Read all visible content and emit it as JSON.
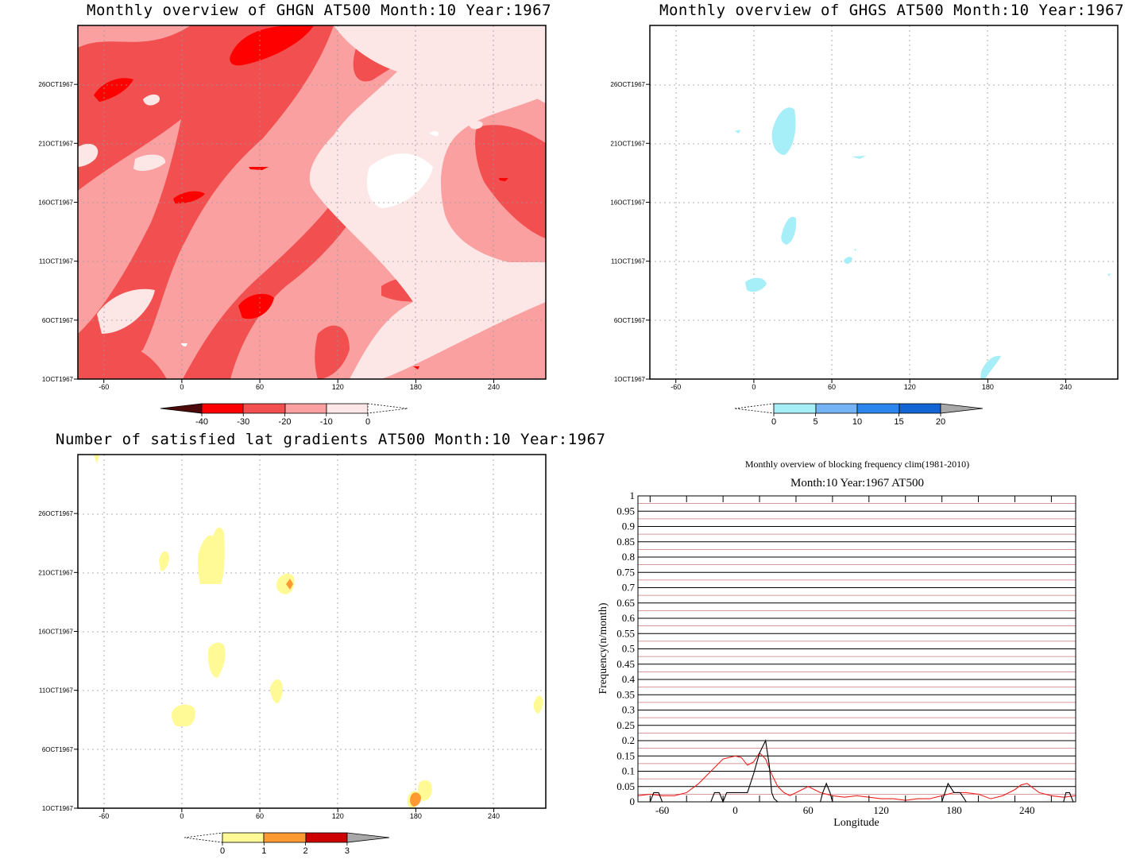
{
  "panels": {
    "ghgn": {
      "title": "Monthly overview of GHGN AT500 Month:10 Year:1967"
    },
    "ghgs": {
      "title": "Monthly overview of GHGS AT500 Month:10 Year:1967"
    },
    "grad": {
      "title": "Number of satisfied lat gradients AT500 Month:10 Year:1967"
    },
    "freq": {
      "title": "Monthly overview of blocking frequency clim(1981-2010)",
      "subtitle": "Month:10 Year:1967  AT500"
    }
  },
  "map_axes": {
    "x_ticks": [
      "-60",
      "0",
      "60",
      "120",
      "180",
      "240"
    ],
    "x_values": [
      -60,
      0,
      60,
      120,
      180,
      240
    ],
    "x_range": [
      -80,
      280
    ],
    "y_ticks": [
      "1OCT1967",
      "6OCT1967",
      "11OCT1967",
      "16OCT1967",
      "21OCT1967",
      "26OCT1967"
    ],
    "y_values": [
      1,
      6,
      11,
      16,
      21,
      26
    ],
    "y_range": [
      1,
      31
    ]
  },
  "colorbars": {
    "ghgn": {
      "labels": [
        "-40",
        "-30",
        "-20",
        "-10",
        "0"
      ],
      "colors": [
        "#4d0a0a",
        "#ff0000",
        "#f25050",
        "#faa0a0",
        "#fde6e6",
        "#ffffff"
      ]
    },
    "ghgs": {
      "labels": [
        "0",
        "5",
        "10",
        "15",
        "20"
      ],
      "colors": [
        "#ffffff",
        "#a6eef8",
        "#74b3f4",
        "#2b85ec",
        "#1166d4",
        "#a8a8a8"
      ]
    },
    "grad": {
      "labels": [
        "0",
        "1",
        "2",
        "3"
      ],
      "colors": [
        "#ffffff",
        "#fffa96",
        "#ff9a32",
        "#cc0000",
        "#a8a8a8"
      ]
    }
  },
  "chart_data": [
    {
      "type": "heatmap",
      "title": "Monthly overview of GHGN AT500 Month:10 Year:1967",
      "xlabel": "",
      "ylabel": "",
      "xlim": [
        -80,
        280
      ],
      "ylim": [
        1,
        31
      ],
      "levels": [
        -40,
        -30,
        -20,
        -10,
        0
      ],
      "dominant_level": "-20 to -10"
    },
    {
      "type": "heatmap",
      "title": "Monthly overview of GHGS AT500 Month:10 Year:1967",
      "xlim": [
        -80,
        280
      ],
      "ylim": [
        1,
        31
      ],
      "levels": [
        0,
        5,
        10,
        15,
        20
      ]
    },
    {
      "type": "heatmap",
      "title": "Number of satisfied lat gradients AT500 Month:10 Year:1967",
      "xlim": [
        -80,
        280
      ],
      "ylim": [
        1,
        31
      ],
      "levels": [
        0,
        1,
        2,
        3
      ]
    },
    {
      "type": "line",
      "title": "Monthly overview of blocking frequency clim(1981-2010)",
      "subtitle": "Month:10 Year:1967  AT500",
      "xlabel": "Longitude",
      "ylabel": "Frequency(n/month)",
      "xlim": [
        -80,
        280
      ],
      "ylim": [
        0,
        1
      ],
      "x_ticks": [
        "-60",
        "0",
        "60",
        "120",
        "180",
        "240"
      ],
      "y_ticks": [
        "0",
        "0.05",
        "0.1",
        "0.15",
        "0.2",
        "0.25",
        "0.3",
        "0.35",
        "0.4",
        "0.45",
        "0.5",
        "0.55",
        "0.6",
        "0.65",
        "0.7",
        "0.75",
        "0.8",
        "0.85",
        "0.9",
        "0.95",
        "1"
      ],
      "grid": true,
      "series": [
        {
          "color": "#ee2222",
          "x": [
            -80,
            -70,
            -60,
            -50,
            -40,
            -30,
            -20,
            -10,
            0,
            5,
            10,
            15,
            20,
            25,
            30,
            35,
            40,
            45,
            50,
            60,
            70,
            80,
            90,
            100,
            110,
            120,
            130,
            140,
            150,
            160,
            170,
            180,
            190,
            200,
            210,
            220,
            230,
            235,
            240,
            250,
            260,
            270,
            280
          ],
          "y": [
            0.02,
            0.025,
            0.02,
            0.02,
            0.03,
            0.06,
            0.1,
            0.14,
            0.15,
            0.145,
            0.12,
            0.13,
            0.16,
            0.14,
            0.09,
            0.05,
            0.03,
            0.02,
            0.03,
            0.05,
            0.03,
            0.02,
            0.015,
            0.02,
            0.015,
            0.01,
            0.01,
            0.005,
            0.01,
            0.01,
            0.02,
            0.03,
            0.03,
            0.025,
            0.01,
            0.02,
            0.04,
            0.055,
            0.06,
            0.03,
            0.02,
            0.015,
            0.02
          ]
        },
        {
          "color": "#000000",
          "x": [
            -80,
            -70,
            -67,
            -63,
            -60,
            -20,
            -17,
            -13,
            -10,
            -7,
            -5,
            0,
            10,
            15,
            20,
            25,
            28,
            30,
            32,
            35,
            70,
            72,
            75,
            78,
            80,
            170,
            175,
            180,
            185,
            190,
            270,
            272,
            275,
            278,
            280
          ],
          "y": [
            0,
            0,
            0.03,
            0.03,
            0,
            0,
            0.03,
            0.03,
            0,
            0.03,
            0.03,
            0.03,
            0.03,
            0.09,
            0.16,
            0.2,
            0.12,
            0.03,
            0.01,
            0,
            0,
            0.03,
            0.06,
            0.03,
            0,
            0,
            0.06,
            0.03,
            0.03,
            0,
            0,
            0.03,
            0.03,
            0,
            0
          ]
        }
      ]
    }
  ]
}
